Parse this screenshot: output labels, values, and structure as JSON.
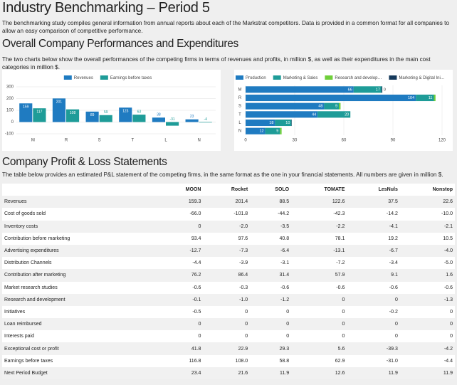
{
  "header": {
    "title": "Industry Benchmarking – Period 5",
    "description": "The benchmarking study compiles general information from annual reports about each of the Markstrat competitors. Data is provided in a common format for all companies to allow an easy comparison of competitive performance."
  },
  "overview": {
    "heading": "Overall Company Performances and Expenditures",
    "description": "The two charts below show the overall performances of the competing firms in terms of revenues and profits, in million $, as well as their expenditures in the main cost categories in million $."
  },
  "chart_data": [
    {
      "type": "bar",
      "orientation": "vertical",
      "legend": "top",
      "grid": true,
      "categories": [
        "M",
        "R",
        "S",
        "T",
        "L",
        "N"
      ],
      "series": [
        {
          "name": "Revenues",
          "color": "#1f7bc1",
          "values": [
            159,
            201,
            89,
            123,
            38,
            23
          ]
        },
        {
          "name": "Earnings before taxes",
          "color": "#1e9c98",
          "values": [
            117,
            108,
            59,
            63,
            -31,
            -4
          ]
        }
      ],
      "ylim": [
        -100,
        300
      ],
      "yticks": [
        -100,
        0,
        100,
        200,
        300
      ]
    },
    {
      "type": "bar",
      "orientation": "horizontal",
      "stacked": true,
      "legend": "top",
      "grid": true,
      "categories": [
        "M",
        "R",
        "S",
        "T",
        "L",
        "N"
      ],
      "series": [
        {
          "name": "Production",
          "color": "#1f7bc1",
          "values": [
            66,
            104,
            48,
            44,
            18,
            12
          ]
        },
        {
          "name": "Marketing & Sales",
          "color": "#1e9c98",
          "values": [
            17,
            11,
            9,
            20,
            10,
            9
          ]
        },
        {
          "name": "Research and develop…",
          "color": "#6fcf3a",
          "values": [
            0,
            1,
            1,
            0,
            0,
            1
          ],
          "value_labels": [
            "0",
            null,
            null,
            null,
            null,
            null
          ]
        },
        {
          "name": "Marketing & Digital Ini…",
          "color": "#163a5c",
          "values": [
            0.5,
            0,
            0,
            0,
            0.2,
            0
          ]
        }
      ],
      "xlim": [
        0,
        120
      ],
      "xticks": [
        0,
        30,
        60,
        90,
        120
      ]
    }
  ],
  "pl": {
    "heading": "Company Profit & Loss Statements",
    "description": "The table below provides an estimated P&L statement of the competing firms, in the same format as the one in your financial statements. All numbers are given in million $."
  },
  "table": {
    "columns": [
      "MOON",
      "Rocket",
      "SOLO",
      "TOMATE",
      "LesNuls",
      "Nonstop"
    ],
    "rows": [
      [
        "Revenues",
        "159.3",
        "201.4",
        "88.5",
        "122.6",
        "37.5",
        "22.6"
      ],
      [
        "Cost of goods sold",
        "-66.0",
        "-101.8",
        "-44.2",
        "-42.3",
        "-14.2",
        "-10.0"
      ],
      [
        "Inventory costs",
        "0",
        "-2.0",
        "-3.5",
        "-2.2",
        "-4.1",
        "-2.1"
      ],
      [
        "Contribution before marketing",
        "93.4",
        "97.6",
        "40.8",
        "78.1",
        "19.2",
        "10.5"
      ],
      [
        "Advertising expenditures",
        "-12.7",
        "-7.3",
        "-6.4",
        "-13.1",
        "-6.7",
        "-4.0"
      ],
      [
        "Distribution Channels",
        "-4.4",
        "-3.9",
        "-3.1",
        "-7.2",
        "-3.4",
        "-5.0"
      ],
      [
        "Contribution after marketing",
        "76.2",
        "86.4",
        "31.4",
        "57.9",
        "9.1",
        "1.6"
      ],
      [
        "Market research studies",
        "-0.6",
        "-0.3",
        "-0.6",
        "-0.6",
        "-0.6",
        "-0.6"
      ],
      [
        "Research and development",
        "-0.1",
        "-1.0",
        "-1.2",
        "0",
        "0",
        "-1.3"
      ],
      [
        "Initiatives",
        "-0.5",
        "0",
        "0",
        "0",
        "-0.2",
        "0"
      ],
      [
        "Loan reimbursed",
        "0",
        "0",
        "0",
        "0",
        "0",
        "0"
      ],
      [
        "Interests paid",
        "0",
        "0",
        "0",
        "0",
        "0",
        "0"
      ],
      [
        "Exceptional cost or profit",
        "41.8",
        "22.9",
        "29.3",
        "5.6",
        "-39.3",
        "-4.2"
      ],
      [
        "Earnings before taxes",
        "116.8",
        "108.0",
        "58.8",
        "62.9",
        "-31.0",
        "-4.4"
      ],
      [
        "Next Period Budget",
        "23.4",
        "21.6",
        "11.9",
        "12.6",
        "11.9",
        "11.9"
      ]
    ]
  }
}
